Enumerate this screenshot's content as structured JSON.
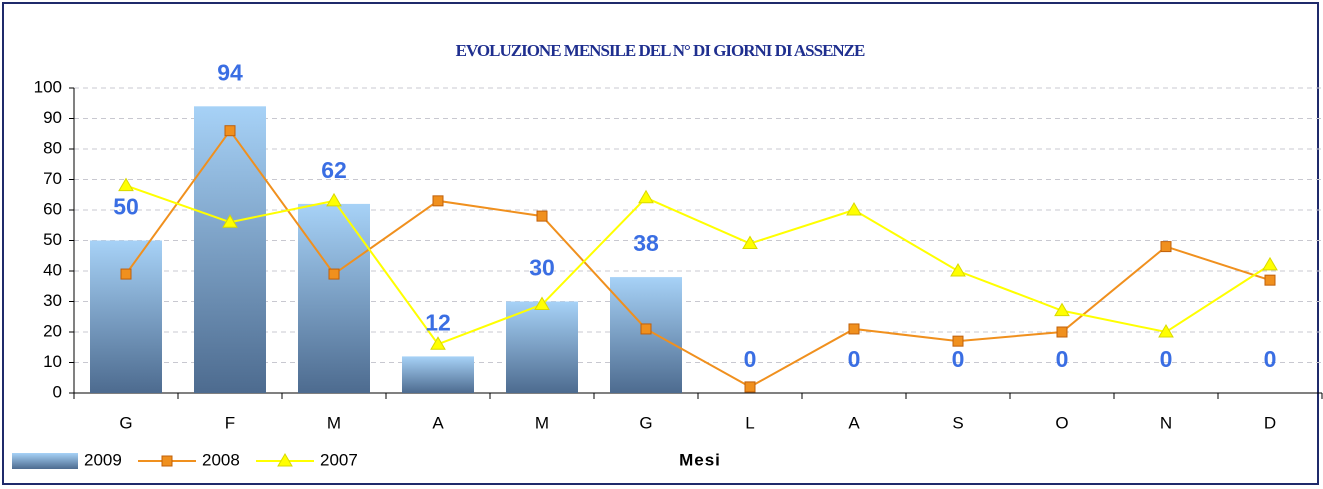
{
  "chart_data": {
    "type": "combo",
    "title": "EVOLUZIONE MENSILE DEL N° DI GIORNI DI ASSENZE",
    "x_label": "Mesi",
    "categories": [
      "G",
      "F",
      "M",
      "A",
      "M",
      "G",
      "L",
      "A",
      "S",
      "O",
      "N",
      "D"
    ],
    "series": [
      {
        "name": "2009",
        "type": "bar",
        "color": "#7ea6d6",
        "values": [
          50,
          94,
          62,
          12,
          30,
          38,
          0,
          0,
          0,
          0,
          0,
          0
        ]
      },
      {
        "name": "2008",
        "type": "line",
        "marker": "square",
        "color": "#f0901e",
        "values": [
          39,
          86,
          39,
          63,
          58,
          21,
          2,
          21,
          17,
          20,
          48,
          37
        ]
      },
      {
        "name": "2007",
        "type": "line",
        "marker": "triangle",
        "color": "#ffff00",
        "values": [
          68,
          56,
          63,
          16,
          29,
          64,
          49,
          60,
          40,
          27,
          20,
          42
        ]
      }
    ],
    "ylim": [
      0,
      100
    ],
    "yticks": [
      0,
      10,
      20,
      30,
      40,
      50,
      60,
      70,
      80,
      90,
      100
    ],
    "grid": true,
    "legend": "bottom-left"
  }
}
